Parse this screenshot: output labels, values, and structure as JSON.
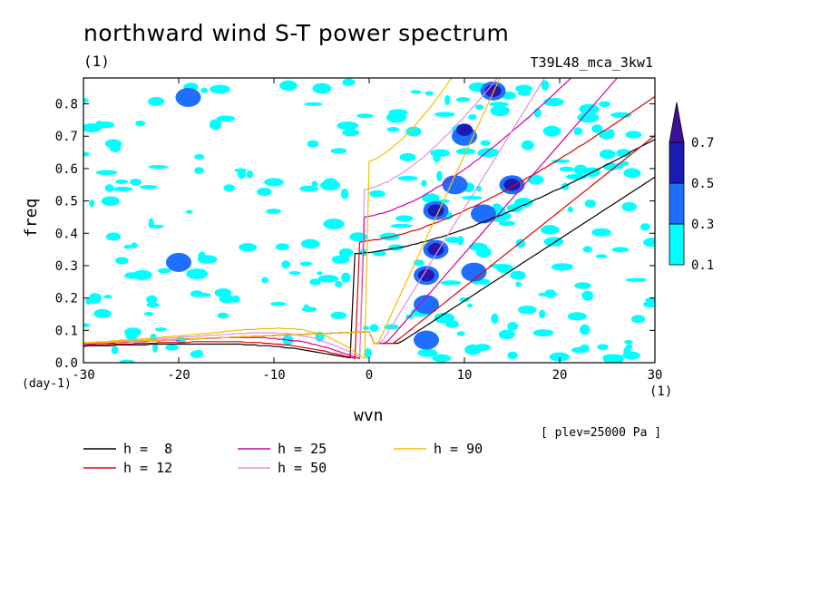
{
  "chart_data": {
    "type": "heatmap",
    "title": "northward wind S-T power spectrum",
    "title_unit": "(1)",
    "run_id": "T39L48_mca_3kw1",
    "xlabel": "wvn",
    "ylabel": "freq",
    "x_unit": "(1)",
    "y_unit": "(day-1)",
    "annotation": "[ plev=25000 Pa ]",
    "xlim": [
      -30,
      30
    ],
    "ylim": [
      0,
      0.88
    ],
    "x_ticks": [
      -30,
      -20,
      -10,
      0,
      10,
      20,
      30
    ],
    "x_tick_labels": [
      "-30",
      "-20",
      "-10",
      "0",
      "10",
      "20",
      "30"
    ],
    "y_ticks": [
      0.0,
      0.1,
      0.2,
      0.3,
      0.4,
      0.5,
      0.6,
      0.7,
      0.8
    ],
    "y_tick_labels": [
      "0.0",
      "0.1",
      "0.2",
      "0.3",
      "0.4",
      "0.5",
      "0.6",
      "0.7",
      "0.8"
    ],
    "colorbar": {
      "levels": [
        "0.1",
        "0.3",
        "0.5",
        "0.7"
      ],
      "colors": [
        "#00ffff",
        "#1f6fff",
        "#1a1ab4",
        "#3d0f9c"
      ]
    },
    "contour_regions": [
      {
        "level": 1,
        "cells": [
          [
            6,
            0.07
          ],
          [
            6,
            0.18
          ],
          [
            6,
            0.27
          ],
          [
            7,
            0.35
          ],
          [
            7,
            0.47
          ],
          [
            9,
            0.55
          ],
          [
            10,
            0.7
          ],
          [
            13,
            0.84
          ],
          [
            15,
            0.55
          ],
          [
            -19,
            0.82
          ],
          [
            -20,
            0.31
          ],
          [
            11,
            0.28
          ],
          [
            12,
            0.46
          ]
        ]
      },
      {
        "level": 2,
        "cells": [
          [
            6,
            0.27
          ],
          [
            7,
            0.35
          ],
          [
            7,
            0.47
          ],
          [
            13,
            0.84
          ],
          [
            10,
            0.72
          ],
          [
            15,
            0.55
          ]
        ]
      },
      {
        "level": 3,
        "cells": [
          [
            6,
            0.28
          ],
          [
            7,
            0.36
          ],
          [
            13,
            0.84
          ]
        ]
      }
    ],
    "dispersion_curves": [
      {
        "name": "h =  8",
        "color": "#000000"
      },
      {
        "name": "h = 12",
        "color": "#e00000"
      },
      {
        "name": "h = 25",
        "color": "#d000a0"
      },
      {
        "name": "h = 50",
        "color": "#e090e0"
      },
      {
        "name": "h = 90",
        "color": "#f0c000"
      }
    ]
  }
}
